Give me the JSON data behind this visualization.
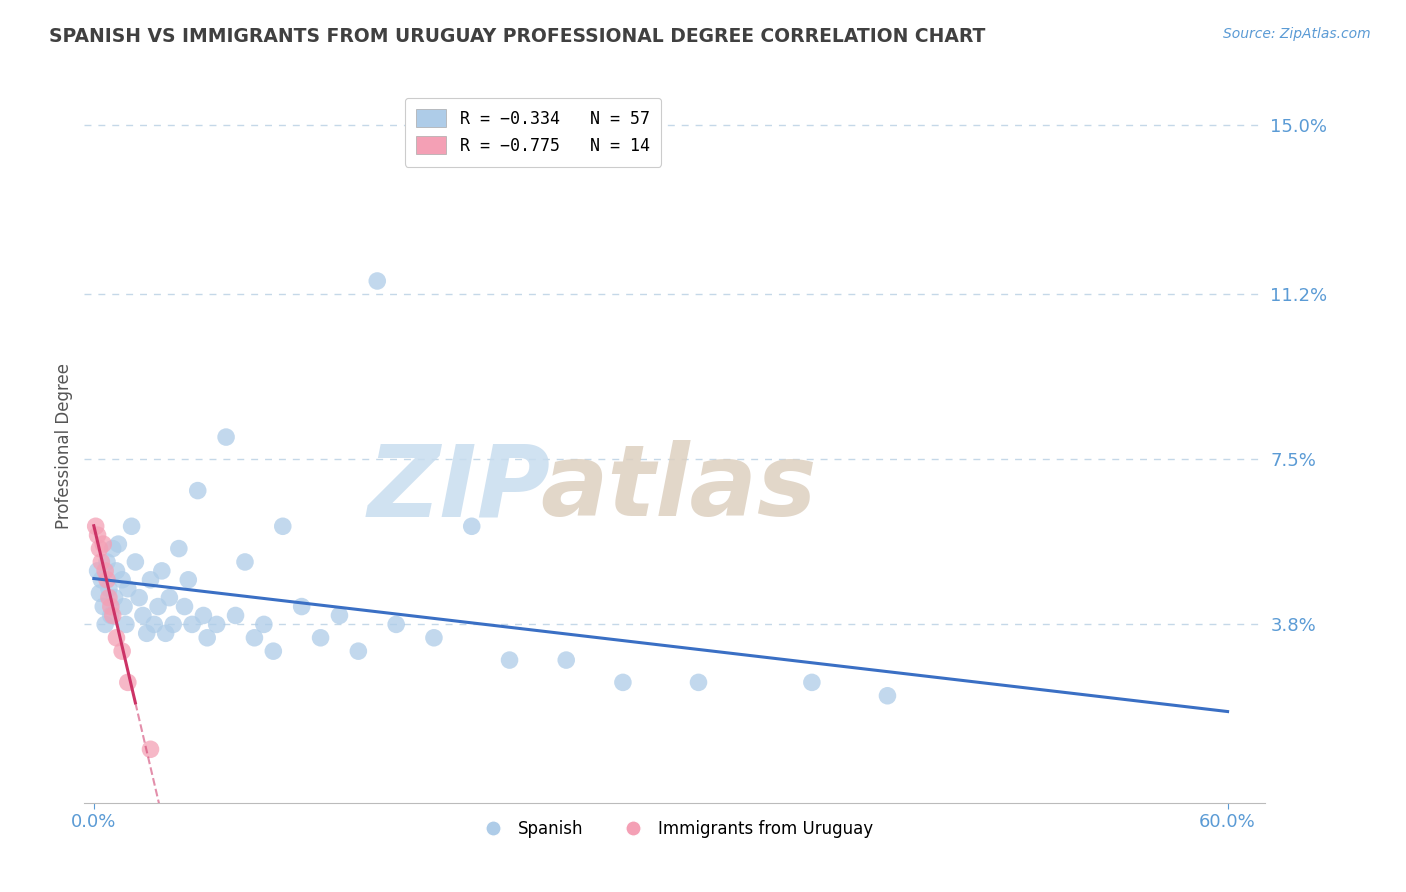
{
  "title": "SPANISH VS IMMIGRANTS FROM URUGUAY PROFESSIONAL DEGREE CORRELATION CHART",
  "source_text": "Source: ZipAtlas.com",
  "ylabel": "Professional Degree",
  "xlim": [
    -0.005,
    0.62
  ],
  "ylim": [
    -0.002,
    0.158
  ],
  "yticks": [
    0.038,
    0.075,
    0.112,
    0.15
  ],
  "ytick_labels": [
    "3.8%",
    "7.5%",
    "11.2%",
    "15.0%"
  ],
  "xtick_labels": [
    "0.0%",
    "60.0%"
  ],
  "xtick_positions": [
    0.0,
    0.6
  ],
  "blue_color": "#aecce8",
  "pink_color": "#f4a0b5",
  "blue_line_color": "#3a6fc4",
  "pink_line_color": "#cc3366",
  "title_color": "#404040",
  "axis_label_color": "#555555",
  "tick_color": "#5b9bd5",
  "grid_color": "#c5d8e8",
  "spanish_x": [
    0.002,
    0.003,
    0.004,
    0.005,
    0.006,
    0.007,
    0.008,
    0.009,
    0.01,
    0.011,
    0.012,
    0.013,
    0.015,
    0.016,
    0.017,
    0.018,
    0.02,
    0.022,
    0.024,
    0.026,
    0.028,
    0.03,
    0.032,
    0.034,
    0.036,
    0.038,
    0.04,
    0.042,
    0.045,
    0.048,
    0.05,
    0.052,
    0.055,
    0.058,
    0.06,
    0.065,
    0.07,
    0.075,
    0.08,
    0.085,
    0.09,
    0.095,
    0.1,
    0.11,
    0.12,
    0.13,
    0.14,
    0.15,
    0.16,
    0.18,
    0.2,
    0.22,
    0.25,
    0.28,
    0.32,
    0.38,
    0.42
  ],
  "spanish_y": [
    0.05,
    0.045,
    0.048,
    0.042,
    0.038,
    0.052,
    0.046,
    0.04,
    0.055,
    0.044,
    0.05,
    0.056,
    0.048,
    0.042,
    0.038,
    0.046,
    0.06,
    0.052,
    0.044,
    0.04,
    0.036,
    0.048,
    0.038,
    0.042,
    0.05,
    0.036,
    0.044,
    0.038,
    0.055,
    0.042,
    0.048,
    0.038,
    0.068,
    0.04,
    0.035,
    0.038,
    0.08,
    0.04,
    0.052,
    0.035,
    0.038,
    0.032,
    0.06,
    0.042,
    0.035,
    0.04,
    0.032,
    0.115,
    0.038,
    0.035,
    0.06,
    0.03,
    0.03,
    0.025,
    0.025,
    0.025,
    0.022
  ],
  "uruguay_x": [
    0.001,
    0.002,
    0.003,
    0.004,
    0.005,
    0.006,
    0.007,
    0.008,
    0.009,
    0.01,
    0.012,
    0.015,
    0.018,
    0.03
  ],
  "uruguay_y": [
    0.06,
    0.058,
    0.055,
    0.052,
    0.056,
    0.05,
    0.048,
    0.044,
    0.042,
    0.04,
    0.035,
    0.032,
    0.025,
    0.01
  ],
  "blue_trendline_x": [
    0.0,
    0.6
  ],
  "blue_trendline_y": [
    0.05,
    0.01
  ],
  "pink_trendline_x": [
    0.0,
    0.032
  ],
  "pink_trendline_y": [
    0.06,
    0.008
  ]
}
